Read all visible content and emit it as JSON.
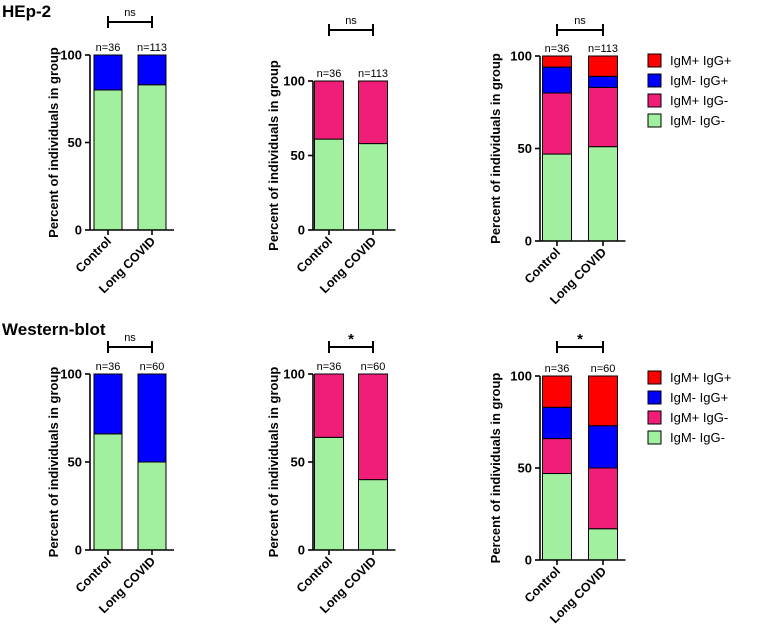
{
  "sections": [
    {
      "title": "HEp-2"
    },
    {
      "title": "Western-blot"
    }
  ],
  "colors": {
    "IgM+ IgG+": "#ff0000",
    "IgM- IgG+": "#0000ff",
    "IgM+ IgG-": "#f01e78",
    "IgM- IgG-": "#a0f0a0"
  },
  "chart_data": [
    {
      "type": "bar",
      "stacked": true,
      "section": "HEp-2",
      "categories": [
        "Control",
        "Long COVID"
      ],
      "n_labels": [
        "n=36",
        "n=113"
      ],
      "series": [
        {
          "values": [
            80,
            83
          ],
          "color": "#a0f0a0"
        },
        {
          "values": [
            20,
            17
          ],
          "color": "#0000ff"
        }
      ],
      "ylabel": "Percent of individuals in group",
      "ylim": [
        0,
        100
      ],
      "yticks": [
        "0",
        "50",
        "100"
      ],
      "significance": "ns"
    },
    {
      "type": "bar",
      "stacked": true,
      "section": "HEp-2",
      "categories": [
        "Control",
        "Long COVID"
      ],
      "n_labels": [
        "n=36",
        "n=113"
      ],
      "series": [
        {
          "values": [
            61,
            58
          ],
          "color": "#a0f0a0"
        },
        {
          "values": [
            39,
            42
          ],
          "color": "#f01e78"
        }
      ],
      "ylabel": "Percent of individuals in group",
      "ylim": [
        0,
        100
      ],
      "yticks": [
        "0",
        "50",
        "100"
      ],
      "significance": "ns"
    },
    {
      "type": "bar",
      "stacked": true,
      "section": "HEp-2",
      "categories": [
        "Control",
        "Long COVID"
      ],
      "n_labels": [
        "n=36",
        "n=113"
      ],
      "series": [
        {
          "name": "IgM- IgG-",
          "values": [
            47,
            51
          ]
        },
        {
          "name": "IgM+ IgG-",
          "values": [
            33,
            32
          ]
        },
        {
          "name": "IgM- IgG+",
          "values": [
            14,
            6
          ]
        },
        {
          "name": "IgM+ IgG+",
          "values": [
            6,
            11
          ]
        }
      ],
      "legend": [
        "IgM+ IgG+",
        "IgM- IgG+",
        "IgM+ IgG-",
        "IgM- IgG-"
      ],
      "ylabel": "Percent of individuals in group",
      "ylim": [
        0,
        100
      ],
      "yticks": [
        "0",
        "50",
        "100"
      ],
      "significance": "ns"
    },
    {
      "type": "bar",
      "stacked": true,
      "section": "Western-blot",
      "categories": [
        "Control",
        "Long COVID"
      ],
      "n_labels": [
        "n=36",
        "n=60"
      ],
      "series": [
        {
          "values": [
            66,
            50
          ],
          "color": "#a0f0a0"
        },
        {
          "values": [
            34,
            50
          ],
          "color": "#0000ff"
        }
      ],
      "ylabel": "Percent of individuals in group",
      "ylim": [
        0,
        100
      ],
      "yticks": [
        "0",
        "50",
        "100"
      ],
      "significance": "ns"
    },
    {
      "type": "bar",
      "stacked": true,
      "section": "Western-blot",
      "categories": [
        "Control",
        "Long COVID"
      ],
      "n_labels": [
        "n=36",
        "n=60"
      ],
      "series": [
        {
          "values": [
            64,
            40
          ],
          "color": "#a0f0a0"
        },
        {
          "values": [
            36,
            60
          ],
          "color": "#f01e78"
        }
      ],
      "ylabel": "Percent of individuals in group",
      "ylim": [
        0,
        100
      ],
      "yticks": [
        "0",
        "50",
        "100"
      ],
      "significance": "*"
    },
    {
      "type": "bar",
      "stacked": true,
      "section": "Western-blot",
      "categories": [
        "Control",
        "Long COVID"
      ],
      "n_labels": [
        "n=36",
        "n=60"
      ],
      "series": [
        {
          "name": "IgM- IgG-",
          "values": [
            47,
            17
          ]
        },
        {
          "name": "IgM+ IgG-",
          "values": [
            19,
            33
          ]
        },
        {
          "name": "IgM- IgG+",
          "values": [
            17,
            23
          ]
        },
        {
          "name": "IgM+ IgG+",
          "values": [
            17,
            27
          ]
        }
      ],
      "legend": [
        "IgM+ IgG+",
        "IgM- IgG+",
        "IgM+ IgG-",
        "IgM- IgG-"
      ],
      "ylabel": "Percent of individuals in group",
      "ylim": [
        0,
        100
      ],
      "yticks": [
        "0",
        "50",
        "100"
      ],
      "significance": "*"
    }
  ]
}
